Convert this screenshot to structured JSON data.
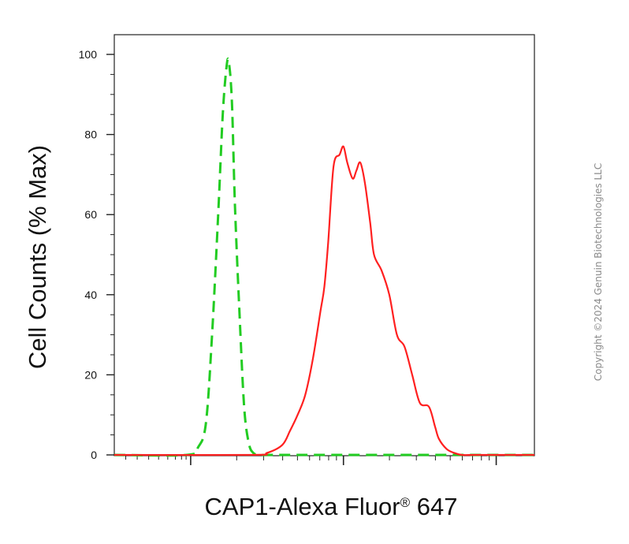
{
  "chart_data": {
    "type": "line",
    "ylabel": "Cell Counts (% Max)",
    "xlabel": {
      "main": "CAP1-Alexa Fluor",
      "registered": "®",
      "suffix": " 647"
    },
    "ylim": [
      0,
      105
    ],
    "xlim": [
      -0.5,
      5.0
    ],
    "x_scale": "log",
    "y_ticks": [
      0,
      20,
      40,
      60,
      80,
      100
    ],
    "y_tick_labels": [
      "0",
      "20",
      "40",
      "60",
      "80",
      "100"
    ],
    "x_major_ticks": [
      0.5,
      2.5,
      4.5
    ],
    "grid": false,
    "legend": "none",
    "series": [
      {
        "color": "#22cc22",
        "style": "dashed",
        "x": [
          -0.5,
          0.45,
          0.6,
          0.7,
          0.78,
          0.86,
          0.92,
          0.97,
          1.0,
          1.04,
          1.08,
          1.14,
          1.2,
          1.26,
          1.32,
          1.4,
          1.5,
          2.0,
          3.0,
          4.0,
          5.0
        ],
        "y": [
          0,
          0,
          2,
          8,
          30,
          60,
          85,
          97,
          98,
          88,
          62,
          35,
          12,
          3,
          0.5,
          0,
          0,
          0,
          0,
          0,
          0
        ]
      },
      {
        "color": "#ff2020",
        "style": "solid",
        "x": [
          -0.5,
          1.3,
          1.5,
          1.7,
          1.8,
          1.9,
          2.0,
          2.1,
          2.2,
          2.25,
          2.3,
          2.37,
          2.45,
          2.5,
          2.55,
          2.62,
          2.67,
          2.72,
          2.78,
          2.85,
          2.9,
          3.0,
          3.1,
          3.2,
          3.3,
          3.4,
          3.5,
          3.62,
          3.7,
          3.75,
          3.85,
          3.95,
          4.05,
          4.2,
          4.4,
          5.0
        ],
        "y": [
          0,
          0,
          0.5,
          2.5,
          6,
          10,
          15,
          24,
          36,
          42,
          53,
          72,
          75,
          77,
          73,
          69,
          71,
          73,
          68,
          58,
          50,
          46,
          40,
          30,
          27,
          20,
          13,
          12,
          7,
          4,
          1.5,
          0.5,
          0,
          0,
          0,
          0
        ]
      }
    ]
  },
  "watermark": "Copyright ©2024 Genuin Biotechnologies LLC"
}
